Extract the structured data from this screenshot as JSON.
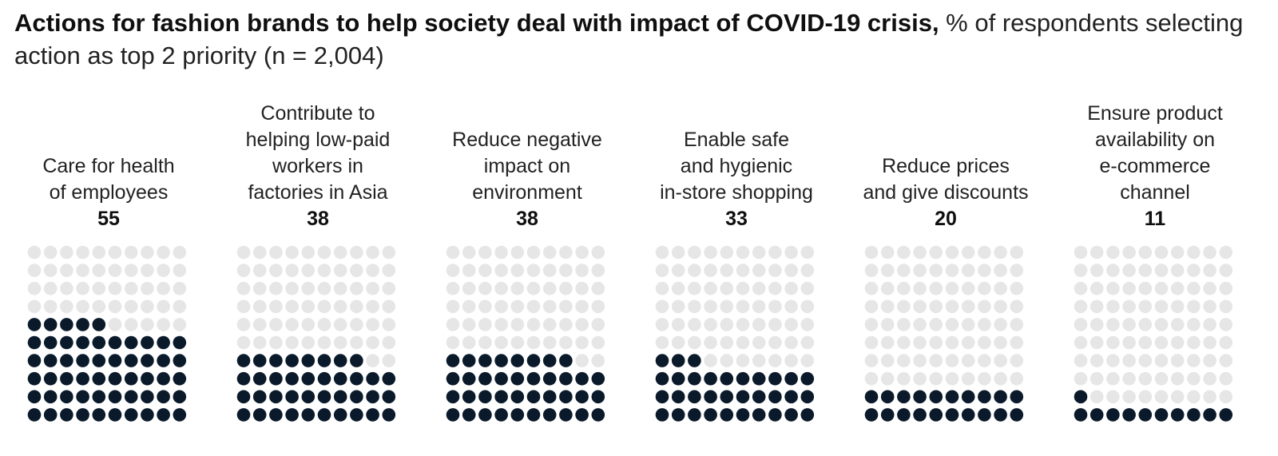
{
  "title": {
    "bold": "Actions for fashion brands to help society deal with impact of COVID-19 crisis,",
    "regular": " % of respondents selecting action as top 2 priority (n = 2,004)"
  },
  "colors": {
    "filled": "#0b1a2b",
    "empty": "#e6e6e6"
  },
  "chart_data": {
    "type": "bar",
    "title": "Actions for fashion brands to help society deal with impact of COVID-19 crisis, % of respondents selecting action as top 2 priority (n = 2,004)",
    "categories": [
      "Care for health of employees",
      "Contribute to helping low-paid workers in factories in Asia",
      "Reduce negative impact on environment",
      "Enable safe and hygienic in-store shopping",
      "Reduce prices and give discounts",
      "Ensure product availability on e-commerce channel"
    ],
    "values": [
      55,
      38,
      38,
      33,
      20,
      11
    ],
    "max_value": 100,
    "grid": "10x10 dot grid per category, filled from bottom"
  },
  "panels": [
    {
      "label": "Care for health\nof employees",
      "value": "55"
    },
    {
      "label": "Contribute to\nhelping low-paid\nworkers in\nfactories in Asia",
      "value": "38"
    },
    {
      "label": "Reduce negative\nimpact on\nenvironment",
      "value": "38"
    },
    {
      "label": "Enable safe\nand hygienic\nin-store shopping",
      "value": "33"
    },
    {
      "label": "Reduce prices\nand give discounts",
      "value": "20"
    },
    {
      "label": "Ensure product\navailability on\ne-commerce\nchannel",
      "value": "11"
    }
  ]
}
